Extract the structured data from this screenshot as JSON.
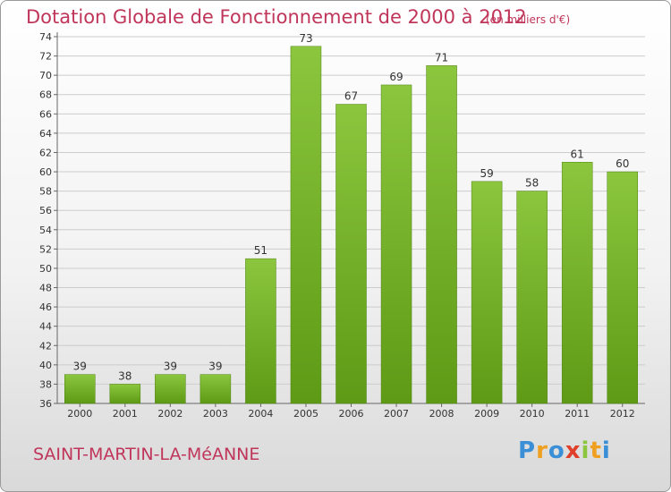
{
  "header": {
    "title": "Dotation Globale de Fonctionnement de 2000 à 2012",
    "subtitle": "(en milliers d'€)"
  },
  "footer": {
    "commune": "SAINT-MARTIN-LA-MéANNE",
    "logo_text": "Proxiti"
  },
  "colors": {
    "bar_top": "#8cc63f",
    "bar_bottom": "#5e9a15",
    "title": "#c0355a",
    "grid": "#cccccc"
  },
  "chart_data": {
    "type": "bar",
    "categories": [
      "2000",
      "2001",
      "2002",
      "2003",
      "2004",
      "2005",
      "2006",
      "2007",
      "2008",
      "2009",
      "2010",
      "2011",
      "2012"
    ],
    "values": [
      39,
      38,
      39,
      39,
      51,
      73,
      67,
      69,
      71,
      59,
      58,
      61,
      60
    ],
    "ylim": [
      36,
      74
    ],
    "yticks": [
      36,
      38,
      40,
      42,
      44,
      46,
      48,
      50,
      52,
      54,
      56,
      58,
      60,
      62,
      64,
      66,
      68,
      70,
      72,
      74
    ],
    "grid": true,
    "data_labels": true
  }
}
